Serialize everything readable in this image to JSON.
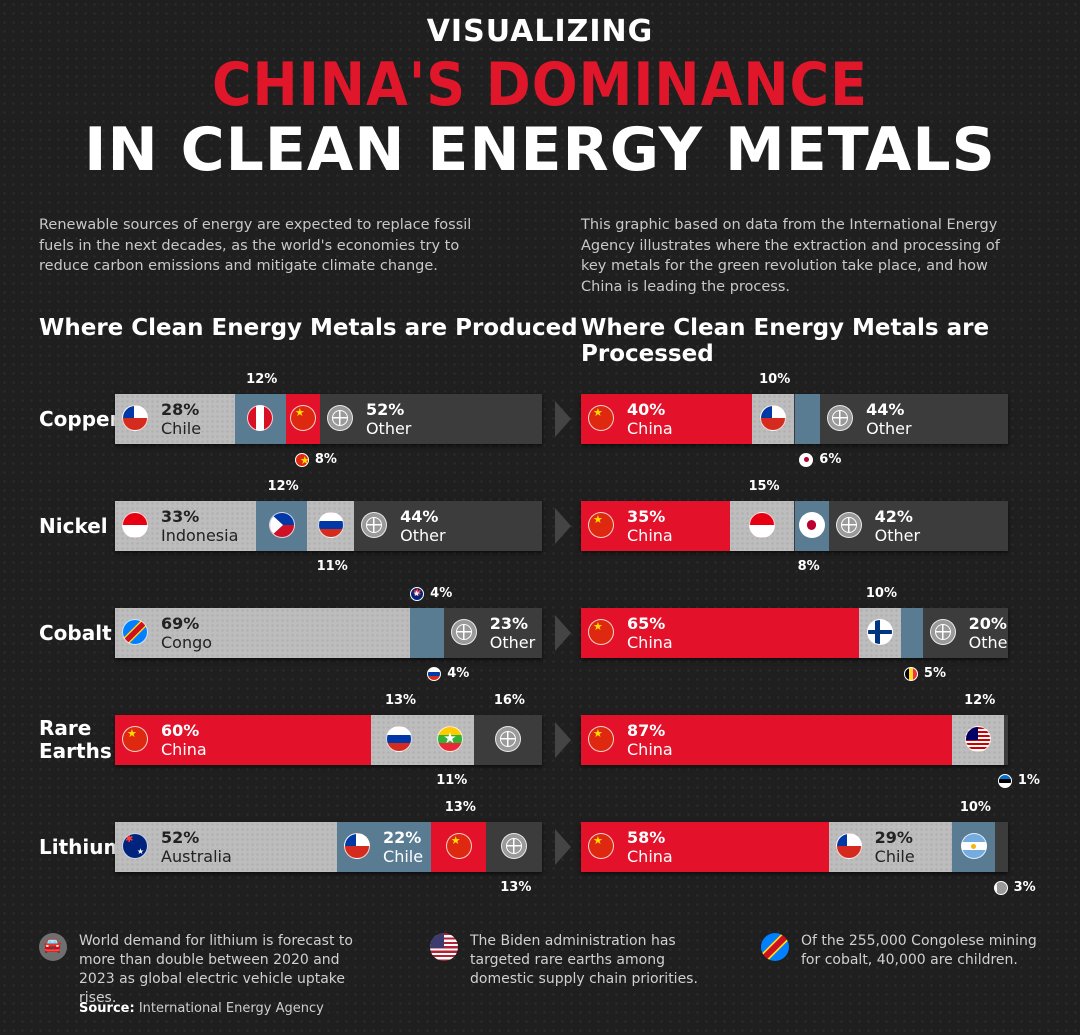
{
  "header": {
    "pre_title": "VISUALIZING",
    "title_red": "CHINA'S DOMINANCE",
    "title_white": "IN CLEAN ENERGY METALS"
  },
  "intro": {
    "left": "Renewable sources of energy are expected to replace fossil fuels in the next decades, as the world's economies try to reduce carbon emissions and mitigate climate change.",
    "right": "This graphic based on data from the International Energy Agency illustrates where the extraction and processing of key metals for the green revolution take place, and how China is leading the process."
  },
  "colors": {
    "china_red": "#e3112a",
    "grey": "#bdbdbd",
    "steel_blue": "#5a7c93",
    "other_dark": "#3c3c3c"
  },
  "chart_data": [
    {
      "type": "bar",
      "subtype": "stacked-100",
      "title": "Where Clean Energy Metals are Produced",
      "categories": [
        "Copper",
        "Nickel",
        "Cobalt",
        "Rare Earths",
        "Lithium"
      ],
      "rows": [
        {
          "metal": "Copper",
          "segments": [
            {
              "country": "Chile",
              "value": 28,
              "color": "grey",
              "flag": "chile",
              "label": "28%",
              "name_label": "Chile"
            },
            {
              "country": "Peru",
              "value": 12,
              "color": "blue",
              "flag": "peru",
              "label": "12%",
              "label_pos": "above"
            },
            {
              "country": "China",
              "value": 8,
              "color": "red",
              "flag": "china",
              "label": "8%",
              "label_pos": "below"
            },
            {
              "country": "Other",
              "value": 52,
              "color": "dark",
              "flag": "globe",
              "label": "52%",
              "name_label": "Other"
            }
          ]
        },
        {
          "metal": "Nickel",
          "segments": [
            {
              "country": "Indonesia",
              "value": 33,
              "color": "grey",
              "flag": "indonesia",
              "label": "33%",
              "name_label": "Indonesia"
            },
            {
              "country": "Philippines",
              "value": 12,
              "color": "blue",
              "flag": "phil",
              "label": "12%",
              "label_pos": "above"
            },
            {
              "country": "Russia",
              "value": 11,
              "color": "grey",
              "flag": "russia",
              "label": "11%",
              "label_pos": "below"
            },
            {
              "country": "Other",
              "value": 44,
              "color": "dark",
              "flag": "globe",
              "label": "44%",
              "name_label": "Other"
            }
          ]
        },
        {
          "metal": "Cobalt",
          "segments": [
            {
              "country": "Congo",
              "value": 69,
              "color": "grey",
              "flag": "congo",
              "label": "69%",
              "name_label": "Congo"
            },
            {
              "country": "Australia",
              "value": 4,
              "color": "blue",
              "flag": "australia",
              "label": "4%",
              "label_pos": "above"
            },
            {
              "country": "Russia",
              "value": 4,
              "color": "blue",
              "flag": "russia",
              "label": "4%",
              "label_pos": "below"
            },
            {
              "country": "Other",
              "value": 23,
              "color": "dark",
              "flag": "globe",
              "label": "23%",
              "name_label": "Other"
            }
          ]
        },
        {
          "metal": "Rare Earths",
          "segments": [
            {
              "country": "China",
              "value": 60,
              "color": "red",
              "flag": "china",
              "label": "60%",
              "name_label": "China"
            },
            {
              "country": "Russia",
              "value": 13,
              "color": "grey",
              "flag": "russia",
              "label": "13%",
              "label_pos": "above"
            },
            {
              "country": "Myanmar",
              "value": 11,
              "color": "grey",
              "flag": "myanmar",
              "label": "11%",
              "label_pos": "below"
            },
            {
              "country": "Other",
              "value": 16,
              "color": "dark",
              "flag": "globe",
              "label": "16%",
              "label_pos": "above"
            }
          ]
        },
        {
          "metal": "Lithium",
          "segments": [
            {
              "country": "Australia",
              "value": 52,
              "color": "grey",
              "flag": "australia",
              "label": "52%",
              "name_label": "Australia"
            },
            {
              "country": "Chile",
              "value": 22,
              "color": "blue",
              "flag": "chile",
              "label": "22%",
              "name_label": "Chile"
            },
            {
              "country": "China",
              "value": 13,
              "color": "red",
              "flag": "china",
              "label": "13%",
              "label_pos": "above"
            },
            {
              "country": "Other",
              "value": 13,
              "color": "dark",
              "flag": "globe",
              "label": "13%",
              "label_pos": "below"
            }
          ]
        }
      ]
    },
    {
      "type": "bar",
      "subtype": "stacked-100",
      "title": "Where Clean Energy Metals are Processed",
      "categories": [
        "Copper",
        "Nickel",
        "Cobalt",
        "Rare Earths",
        "Lithium"
      ],
      "rows": [
        {
          "metal": "Copper",
          "segments": [
            {
              "country": "China",
              "value": 40,
              "color": "red",
              "flag": "china",
              "label": "40%",
              "name_label": "China"
            },
            {
              "country": "Chile",
              "value": 10,
              "color": "grey",
              "flag": "chile",
              "label": "10%",
              "label_pos": "above"
            },
            {
              "country": "Japan",
              "value": 6,
              "color": "blue",
              "flag": "japan",
              "label": "6%",
              "label_pos": "below"
            },
            {
              "country": "Other",
              "value": 44,
              "color": "dark",
              "flag": "globe",
              "label": "44%",
              "name_label": "Other"
            }
          ]
        },
        {
          "metal": "Nickel",
          "segments": [
            {
              "country": "China",
              "value": 35,
              "color": "red",
              "flag": "china",
              "label": "35%",
              "name_label": "China"
            },
            {
              "country": "Indonesia",
              "value": 15,
              "color": "grey",
              "flag": "indonesia",
              "label": "15%",
              "label_pos": "above"
            },
            {
              "country": "Japan",
              "value": 8,
              "color": "blue",
              "flag": "japan",
              "label": "8%",
              "label_pos": "below"
            },
            {
              "country": "Other",
              "value": 42,
              "color": "dark",
              "flag": "globe",
              "label": "42%",
              "name_label": "Other"
            }
          ]
        },
        {
          "metal": "Cobalt",
          "segments": [
            {
              "country": "China",
              "value": 65,
              "color": "red",
              "flag": "china",
              "label": "65%",
              "name_label": "China"
            },
            {
              "country": "Finland",
              "value": 10,
              "color": "grey",
              "flag": "finland",
              "label": "10%",
              "label_pos": "above"
            },
            {
              "country": "Belgium",
              "value": 5,
              "color": "blue",
              "flag": "belgium",
              "label": "5%",
              "label_pos": "below"
            },
            {
              "country": "Other",
              "value": 20,
              "color": "dark",
              "flag": "globe",
              "label": "20%",
              "name_label": "Other"
            }
          ]
        },
        {
          "metal": "Rare Earths",
          "segments": [
            {
              "country": "China",
              "value": 87,
              "color": "red",
              "flag": "china",
              "label": "87%",
              "name_label": "China"
            },
            {
              "country": "Malaysia",
              "value": 12,
              "color": "grey",
              "flag": "malaysia",
              "label": "12%",
              "label_pos": "above"
            },
            {
              "country": "Estonia",
              "value": 1,
              "color": "dark",
              "flag": "estonia",
              "label": "1%",
              "label_pos": "below"
            }
          ]
        },
        {
          "metal": "Lithium",
          "segments": [
            {
              "country": "China",
              "value": 58,
              "color": "red",
              "flag": "china",
              "label": "58%",
              "name_label": "China"
            },
            {
              "country": "Chile",
              "value": 29,
              "color": "grey",
              "flag": "chile",
              "label": "29%",
              "name_label": "Chile"
            },
            {
              "country": "Argentina",
              "value": 10,
              "color": "blue",
              "flag": "argentina",
              "label": "10%",
              "label_pos": "above"
            },
            {
              "country": "Other",
              "value": 3,
              "color": "dark",
              "flag": "globe",
              "label": "3%",
              "label_pos": "below"
            }
          ]
        }
      ]
    }
  ],
  "row_labels": [
    "Copper",
    "Nickel",
    "Cobalt",
    "Rare\nEarths",
    "Lithium"
  ],
  "facts": [
    {
      "icon": "car-icon",
      "text": "World demand for lithium is forecast to more than double between 2020 and 2023 as global electric vehicle uptake rises."
    },
    {
      "icon": "usa-flag-icon",
      "text": "The Biden administration has targeted rare earths among domestic supply chain priorities."
    },
    {
      "icon": "congo-flag-icon",
      "text": "Of the 255,000 Congolese mining for cobalt, 40,000 are children."
    }
  ],
  "source": {
    "label": "Source:",
    "text": "International Energy Agency"
  }
}
